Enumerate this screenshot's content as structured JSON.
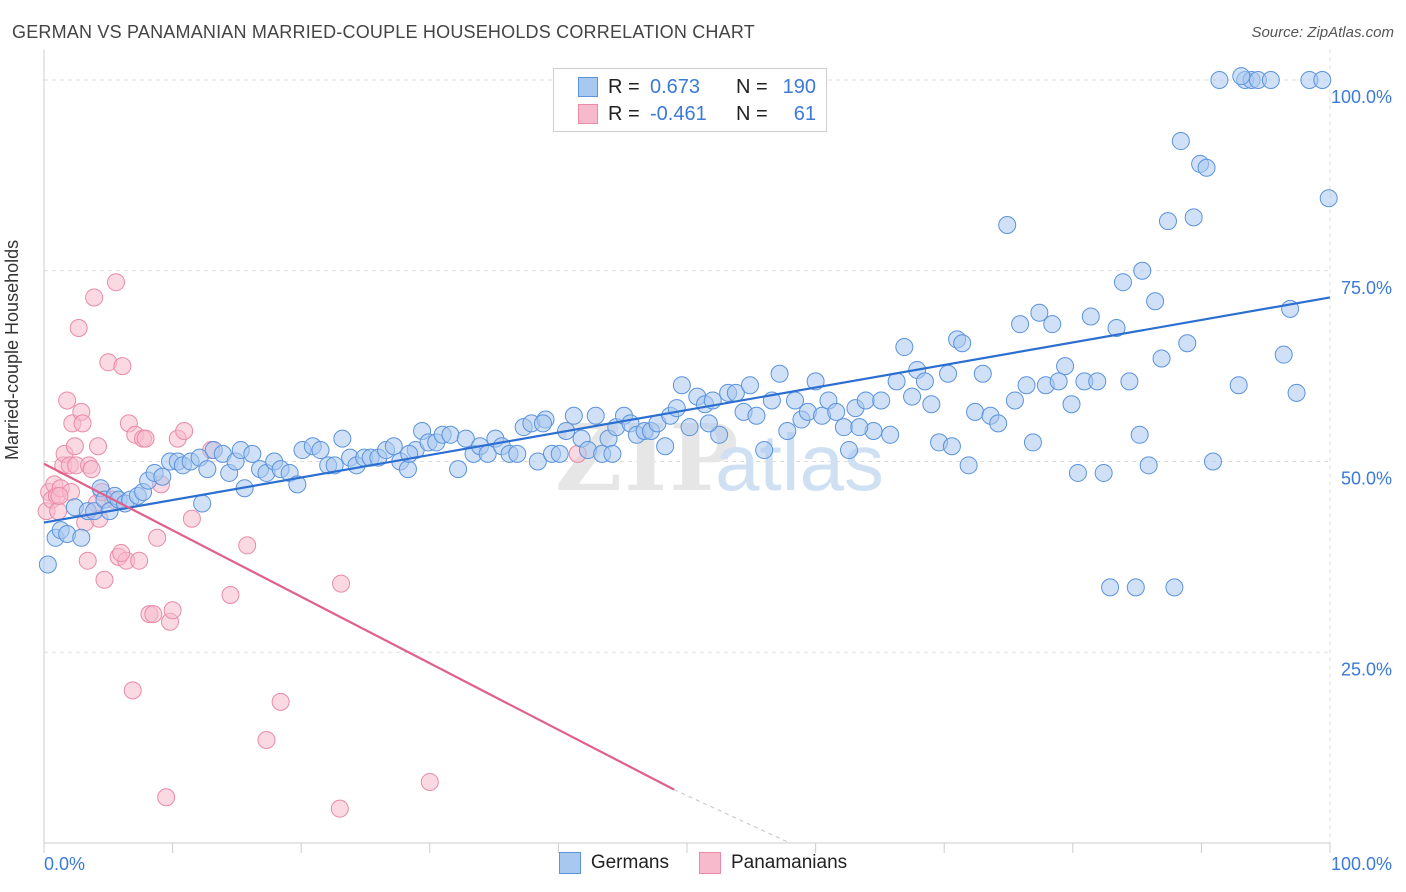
{
  "title": "GERMAN VS PANAMANIAN MARRIED-COUPLE HOUSEHOLDS CORRELATION CHART",
  "source": "Source: ZipAtlas.com",
  "watermark": {
    "zip": "ZIP",
    "atlas": "atlas"
  },
  "legend": {
    "rows": [
      {
        "r_label": "R =",
        "r_value": "0.673",
        "n_label": "N =",
        "n_value": "190"
      },
      {
        "r_label": "R =",
        "r_value": "-0.461",
        "n_label": "N =",
        "n_value": "61"
      }
    ]
  },
  "bottom_legend": {
    "germans": "Germans",
    "panamanians": "Panamanians"
  },
  "colors": {
    "blue_fill": "#a9c8f0",
    "blue_stroke": "#5b93dc",
    "blue_line": "#2c6fd0",
    "pink_fill": "#f7b9cc",
    "pink_stroke": "#e98aa8",
    "pink_line": "#e0608a",
    "grid": "#dddddd",
    "tick_label": "#3b7ad9"
  },
  "chart_data": {
    "type": "scatter",
    "title": "GERMAN VS PANAMANIAN MARRIED-COUPLE HOUSEHOLDS CORRELATION CHART",
    "xlabel": "",
    "ylabel": "Married-couple Households",
    "xlim": [
      0,
      100
    ],
    "ylim": [
      0,
      104
    ],
    "x_tick_labels": [
      "0.0%",
      "100.0%"
    ],
    "y_ticks": [
      25,
      50,
      75,
      100
    ],
    "y_tick_labels": [
      "25.0%",
      "50.0%",
      "75.0%",
      "100.0%"
    ],
    "grid": true,
    "series": [
      {
        "name": "Germans",
        "r": 0.673,
        "n": 190,
        "trend": {
          "x": [
            0,
            100
          ],
          "y": [
            42,
            71.5
          ]
        },
        "points": [
          [
            0.3,
            36.5
          ],
          [
            0.9,
            40
          ],
          [
            1.3,
            41
          ],
          [
            1.8,
            40.5
          ],
          [
            2.4,
            44
          ],
          [
            2.9,
            40
          ],
          [
            3.4,
            43.5
          ],
          [
            3.9,
            43.5
          ],
          [
            4.4,
            46.5
          ],
          [
            4.7,
            45
          ],
          [
            5.1,
            43.5
          ],
          [
            5.5,
            45.5
          ],
          [
            5.8,
            45
          ],
          [
            6.3,
            44.5
          ],
          [
            6.7,
            45
          ],
          [
            7.3,
            45.5
          ],
          [
            7.7,
            46
          ],
          [
            8.1,
            47.5
          ],
          [
            8.6,
            48.5
          ],
          [
            9.2,
            48
          ],
          [
            9.8,
            50
          ],
          [
            10.4,
            50
          ],
          [
            10.8,
            49.5
          ],
          [
            11.4,
            50
          ],
          [
            12.1,
            50.5
          ],
          [
            12.7,
            49
          ],
          [
            13.2,
            51.5
          ],
          [
            13.9,
            51
          ],
          [
            14.4,
            48.5
          ],
          [
            14.9,
            50
          ],
          [
            15.3,
            51.5
          ],
          [
            15.6,
            46.5
          ],
          [
            16.2,
            51
          ],
          [
            16.8,
            49
          ],
          [
            17.3,
            48.5
          ],
          [
            17.9,
            50
          ],
          [
            18.4,
            49
          ],
          [
            19.1,
            48.5
          ],
          [
            19.7,
            47
          ],
          [
            20.1,
            51.5
          ],
          [
            20.9,
            52
          ],
          [
            21.5,
            51.5
          ],
          [
            22.1,
            49.5
          ],
          [
            22.6,
            49.5
          ],
          [
            23.2,
            53
          ],
          [
            23.8,
            50.5
          ],
          [
            24.3,
            49.5
          ],
          [
            24.9,
            50.5
          ],
          [
            25.4,
            50.5
          ],
          [
            26.0,
            50.5
          ],
          [
            26.6,
            51.5
          ],
          [
            27.2,
            52
          ],
          [
            27.7,
            50
          ],
          [
            28.3,
            49
          ],
          [
            28.9,
            51.5
          ],
          [
            29.4,
            54
          ],
          [
            29.9,
            52.5
          ],
          [
            30.5,
            52.5
          ],
          [
            31.0,
            53.5
          ],
          [
            31.6,
            53.5
          ],
          [
            32.2,
            49
          ],
          [
            32.8,
            53
          ],
          [
            33.4,
            51
          ],
          [
            33.9,
            52
          ],
          [
            34.5,
            51
          ],
          [
            35.1,
            53
          ],
          [
            35.6,
            52
          ],
          [
            36.2,
            51
          ],
          [
            36.8,
            51
          ],
          [
            37.3,
            54.5
          ],
          [
            37.9,
            55
          ],
          [
            38.4,
            50
          ],
          [
            39.0,
            55.5
          ],
          [
            39.5,
            51
          ],
          [
            40.1,
            51
          ],
          [
            40.6,
            54
          ],
          [
            41.2,
            56
          ],
          [
            41.8,
            53
          ],
          [
            42.3,
            51.5
          ],
          [
            42.9,
            56
          ],
          [
            43.4,
            51
          ],
          [
            43.9,
            53
          ],
          [
            44.5,
            54.5
          ],
          [
            45.1,
            56
          ],
          [
            45.6,
            55
          ],
          [
            46.1,
            53.5
          ],
          [
            46.7,
            54
          ],
          [
            47.2,
            54
          ],
          [
            47.7,
            55
          ],
          [
            48.3,
            52
          ],
          [
            48.7,
            56
          ],
          [
            49.2,
            57
          ],
          [
            49.6,
            60
          ],
          [
            50.2,
            54.5
          ],
          [
            50.8,
            58.5
          ],
          [
            51.4,
            57.5
          ],
          [
            52.0,
            58
          ],
          [
            52.5,
            53.5
          ],
          [
            53.2,
            59
          ],
          [
            53.8,
            59
          ],
          [
            54.4,
            56.5
          ],
          [
            54.9,
            60
          ],
          [
            55.4,
            56
          ],
          [
            56.0,
            51.5
          ],
          [
            56.6,
            58
          ],
          [
            57.2,
            61.5
          ],
          [
            57.8,
            54
          ],
          [
            58.4,
            58
          ],
          [
            58.9,
            55.5
          ],
          [
            59.4,
            56.5
          ],
          [
            60.0,
            60.5
          ],
          [
            60.5,
            56
          ],
          [
            61.0,
            58
          ],
          [
            61.6,
            56.5
          ],
          [
            62.2,
            54.5
          ],
          [
            62.6,
            51.5
          ],
          [
            63.1,
            57
          ],
          [
            63.9,
            58
          ],
          [
            64.5,
            54
          ],
          [
            65.1,
            58
          ],
          [
            65.8,
            53.5
          ],
          [
            66.3,
            60.5
          ],
          [
            66.9,
            65
          ],
          [
            67.5,
            58.5
          ],
          [
            67.9,
            62
          ],
          [
            68.5,
            60.5
          ],
          [
            69.0,
            57.5
          ],
          [
            69.6,
            52.5
          ],
          [
            70.3,
            61.5
          ],
          [
            71.0,
            66
          ],
          [
            71.4,
            65.5
          ],
          [
            71.9,
            49.5
          ],
          [
            72.4,
            56.5
          ],
          [
            73.0,
            61.5
          ],
          [
            73.6,
            56
          ],
          [
            74.2,
            55
          ],
          [
            74.9,
            81
          ],
          [
            75.5,
            58
          ],
          [
            75.9,
            68
          ],
          [
            76.4,
            60
          ],
          [
            76.9,
            52.5
          ],
          [
            77.4,
            69.5
          ],
          [
            77.9,
            60
          ],
          [
            78.4,
            68
          ],
          [
            78.9,
            60.5
          ],
          [
            79.4,
            62.5
          ],
          [
            79.9,
            57.5
          ],
          [
            80.4,
            48.5
          ],
          [
            80.9,
            60.5
          ],
          [
            81.4,
            69
          ],
          [
            81.9,
            60.5
          ],
          [
            82.4,
            48.5
          ],
          [
            82.9,
            33.5
          ],
          [
            83.4,
            67.5
          ],
          [
            83.9,
            73.5
          ],
          [
            84.4,
            60.5
          ],
          [
            84.9,
            33.5
          ],
          [
            85.4,
            75
          ],
          [
            85.9,
            49.5
          ],
          [
            86.4,
            71
          ],
          [
            86.9,
            63.5
          ],
          [
            87.4,
            81.5
          ],
          [
            87.9,
            33.5
          ],
          [
            88.4,
            92
          ],
          [
            88.9,
            65.5
          ],
          [
            89.4,
            82
          ],
          [
            89.9,
            89
          ],
          [
            90.4,
            88.5
          ],
          [
            90.9,
            50
          ],
          [
            91.4,
            100
          ],
          [
            92.9,
            60
          ],
          [
            93.4,
            100
          ],
          [
            93.9,
            100
          ],
          [
            94.4,
            100
          ],
          [
            95.4,
            100
          ],
          [
            96.4,
            64
          ],
          [
            96.9,
            70
          ],
          [
            97.4,
            59
          ],
          [
            98.4,
            100
          ],
          [
            99.4,
            100
          ],
          [
            99.9,
            84.5
          ],
          [
            38.8,
            55
          ],
          [
            44.2,
            51
          ],
          [
            51.7,
            55
          ],
          [
            63.4,
            54.5
          ],
          [
            70.6,
            52
          ],
          [
            85.2,
            53.5
          ],
          [
            93.1,
            100.5
          ],
          [
            12.3,
            44.5
          ],
          [
            28.4,
            51
          ]
        ]
      },
      {
        "name": "Panamanians",
        "r": -0.461,
        "n": 61,
        "trend": {
          "x": [
            0,
            49
          ],
          "y": [
            49.7,
            7
          ]
        },
        "trend_dashed": {
          "x": [
            49,
            58
          ],
          "y": [
            7,
            0
          ]
        },
        "points": [
          [
            0.2,
            43.5
          ],
          [
            0.4,
            46
          ],
          [
            0.6,
            45
          ],
          [
            0.8,
            47
          ],
          [
            1.0,
            45.5
          ],
          [
            1.1,
            43.5
          ],
          [
            1.3,
            46.5
          ],
          [
            1.5,
            49.5
          ],
          [
            1.6,
            51
          ],
          [
            1.8,
            58
          ],
          [
            2.0,
            49.5
          ],
          [
            2.2,
            55
          ],
          [
            2.4,
            52
          ],
          [
            2.5,
            49.5
          ],
          [
            2.7,
            67.5
          ],
          [
            2.9,
            56.5
          ],
          [
            3.0,
            55
          ],
          [
            3.2,
            42
          ],
          [
            3.4,
            37
          ],
          [
            3.5,
            49.5
          ],
          [
            3.7,
            49
          ],
          [
            3.9,
            71.5
          ],
          [
            4.1,
            44.5
          ],
          [
            4.3,
            42.5
          ],
          [
            4.5,
            46
          ],
          [
            4.7,
            34.5
          ],
          [
            5.0,
            63
          ],
          [
            5.4,
            45
          ],
          [
            5.6,
            73.5
          ],
          [
            5.8,
            37.5
          ],
          [
            6.1,
            62.5
          ],
          [
            6.4,
            37
          ],
          [
            6.6,
            55
          ],
          [
            6.9,
            20
          ],
          [
            7.1,
            53.5
          ],
          [
            7.4,
            37
          ],
          [
            7.7,
            53
          ],
          [
            7.9,
            53
          ],
          [
            8.2,
            30
          ],
          [
            8.5,
            30
          ],
          [
            8.8,
            40
          ],
          [
            9.1,
            47
          ],
          [
            9.5,
            6
          ],
          [
            9.8,
            29
          ],
          [
            10.0,
            30.5
          ],
          [
            10.4,
            53
          ],
          [
            10.9,
            54
          ],
          [
            11.5,
            42.5
          ],
          [
            13.0,
            51.5
          ],
          [
            14.5,
            32.5
          ],
          [
            15.8,
            39
          ],
          [
            17.3,
            13.5
          ],
          [
            18.4,
            18.5
          ],
          [
            23.0,
            4.5
          ],
          [
            23.1,
            34
          ],
          [
            30.0,
            8
          ],
          [
            41.5,
            51
          ],
          [
            2.1,
            46
          ],
          [
            1.2,
            45.5
          ],
          [
            4.2,
            52
          ],
          [
            6.0,
            38
          ]
        ]
      }
    ]
  }
}
